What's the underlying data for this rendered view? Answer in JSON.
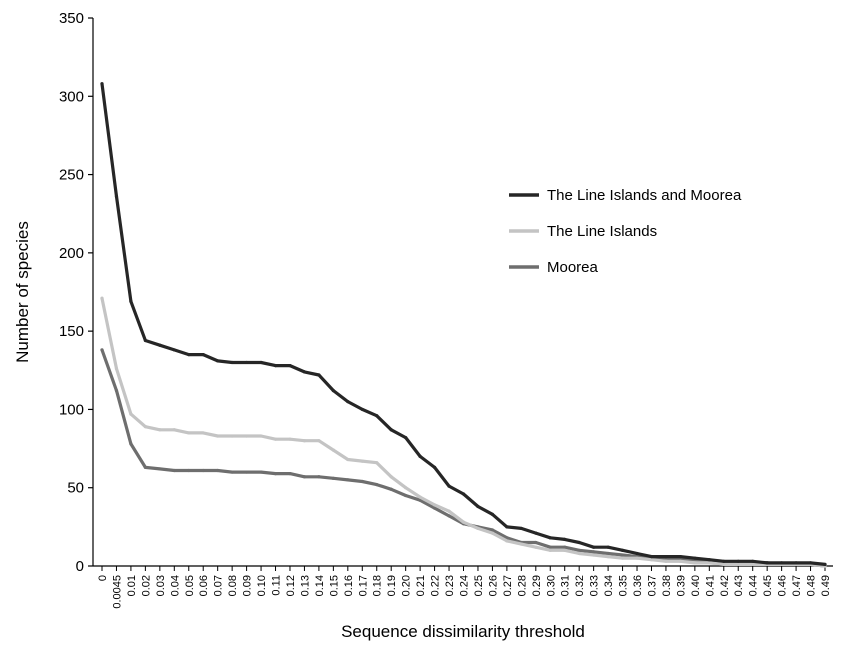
{
  "chart_data": {
    "type": "line",
    "title": "",
    "xlabel": "Sequence dissimilarity threshold",
    "ylabel": "Number of species",
    "ylim": [
      0,
      350
    ],
    "yticks": [
      "0",
      "50",
      "100",
      "150",
      "200",
      "250",
      "300",
      "350"
    ],
    "grid": false,
    "legend_position": "right",
    "categories": [
      "0",
      "0.0045",
      "0.01",
      "0.02",
      "0.03",
      "0.04",
      "0.05",
      "0.06",
      "0.07",
      "0.08",
      "0.09",
      "0.10",
      "0.11",
      "0.12",
      "0.13",
      "0.14",
      "0.15",
      "0.16",
      "0.17",
      "0.18",
      "0.19",
      "0.20",
      "0.21",
      "0.22",
      "0.23",
      "0.24",
      "0.25",
      "0.26",
      "0.27",
      "0.28",
      "0.29",
      "0.30",
      "0.31",
      "0.32",
      "0.33",
      "0.34",
      "0.35",
      "0.36",
      "0.37",
      "0.38",
      "0.39",
      "0.40",
      "0.41",
      "0.42",
      "0.43",
      "0.44",
      "0.45",
      "0.46",
      "0.47",
      "0.48",
      "0.49"
    ],
    "series": [
      {
        "name": "The Line Islands and Moorea",
        "color": "#262626",
        "values": [
          308,
          236,
          169,
          144,
          141,
          138,
          135,
          135,
          131,
          130,
          130,
          130,
          128,
          128,
          124,
          122,
          112,
          105,
          100,
          96,
          87,
          82,
          70,
          63,
          51,
          46,
          38,
          33,
          25,
          24,
          21,
          18,
          17,
          15,
          12,
          12,
          10,
          8,
          6,
          6,
          6,
          5,
          4,
          3,
          3,
          3,
          2,
          2,
          2,
          2,
          1
        ]
      },
      {
        "name": "The Line Islands",
        "color": "#c4c4c4",
        "values": [
          171,
          126,
          97,
          89,
          87,
          87,
          85,
          85,
          83,
          83,
          83,
          83,
          81,
          81,
          80,
          80,
          74,
          68,
          67,
          66,
          57,
          50,
          44,
          39,
          35,
          28,
          24,
          21,
          16,
          14,
          12,
          10,
          10,
          8,
          7,
          6,
          5,
          5,
          4,
          3,
          3,
          2,
          2,
          1,
          1,
          1,
          1,
          1,
          1,
          1,
          0
        ]
      },
      {
        "name": "Moorea",
        "color": "#6e6e6e",
        "values": [
          138,
          112,
          78,
          63,
          62,
          61,
          61,
          61,
          61,
          60,
          60,
          60,
          59,
          59,
          57,
          57,
          56,
          55,
          54,
          52,
          49,
          45,
          42,
          37,
          32,
          27,
          25,
          23,
          18,
          15,
          15,
          12,
          12,
          10,
          9,
          8,
          7,
          6,
          5,
          5,
          4,
          4,
          3,
          2,
          2,
          2,
          2,
          1,
          1,
          1,
          0
        ]
      }
    ]
  }
}
